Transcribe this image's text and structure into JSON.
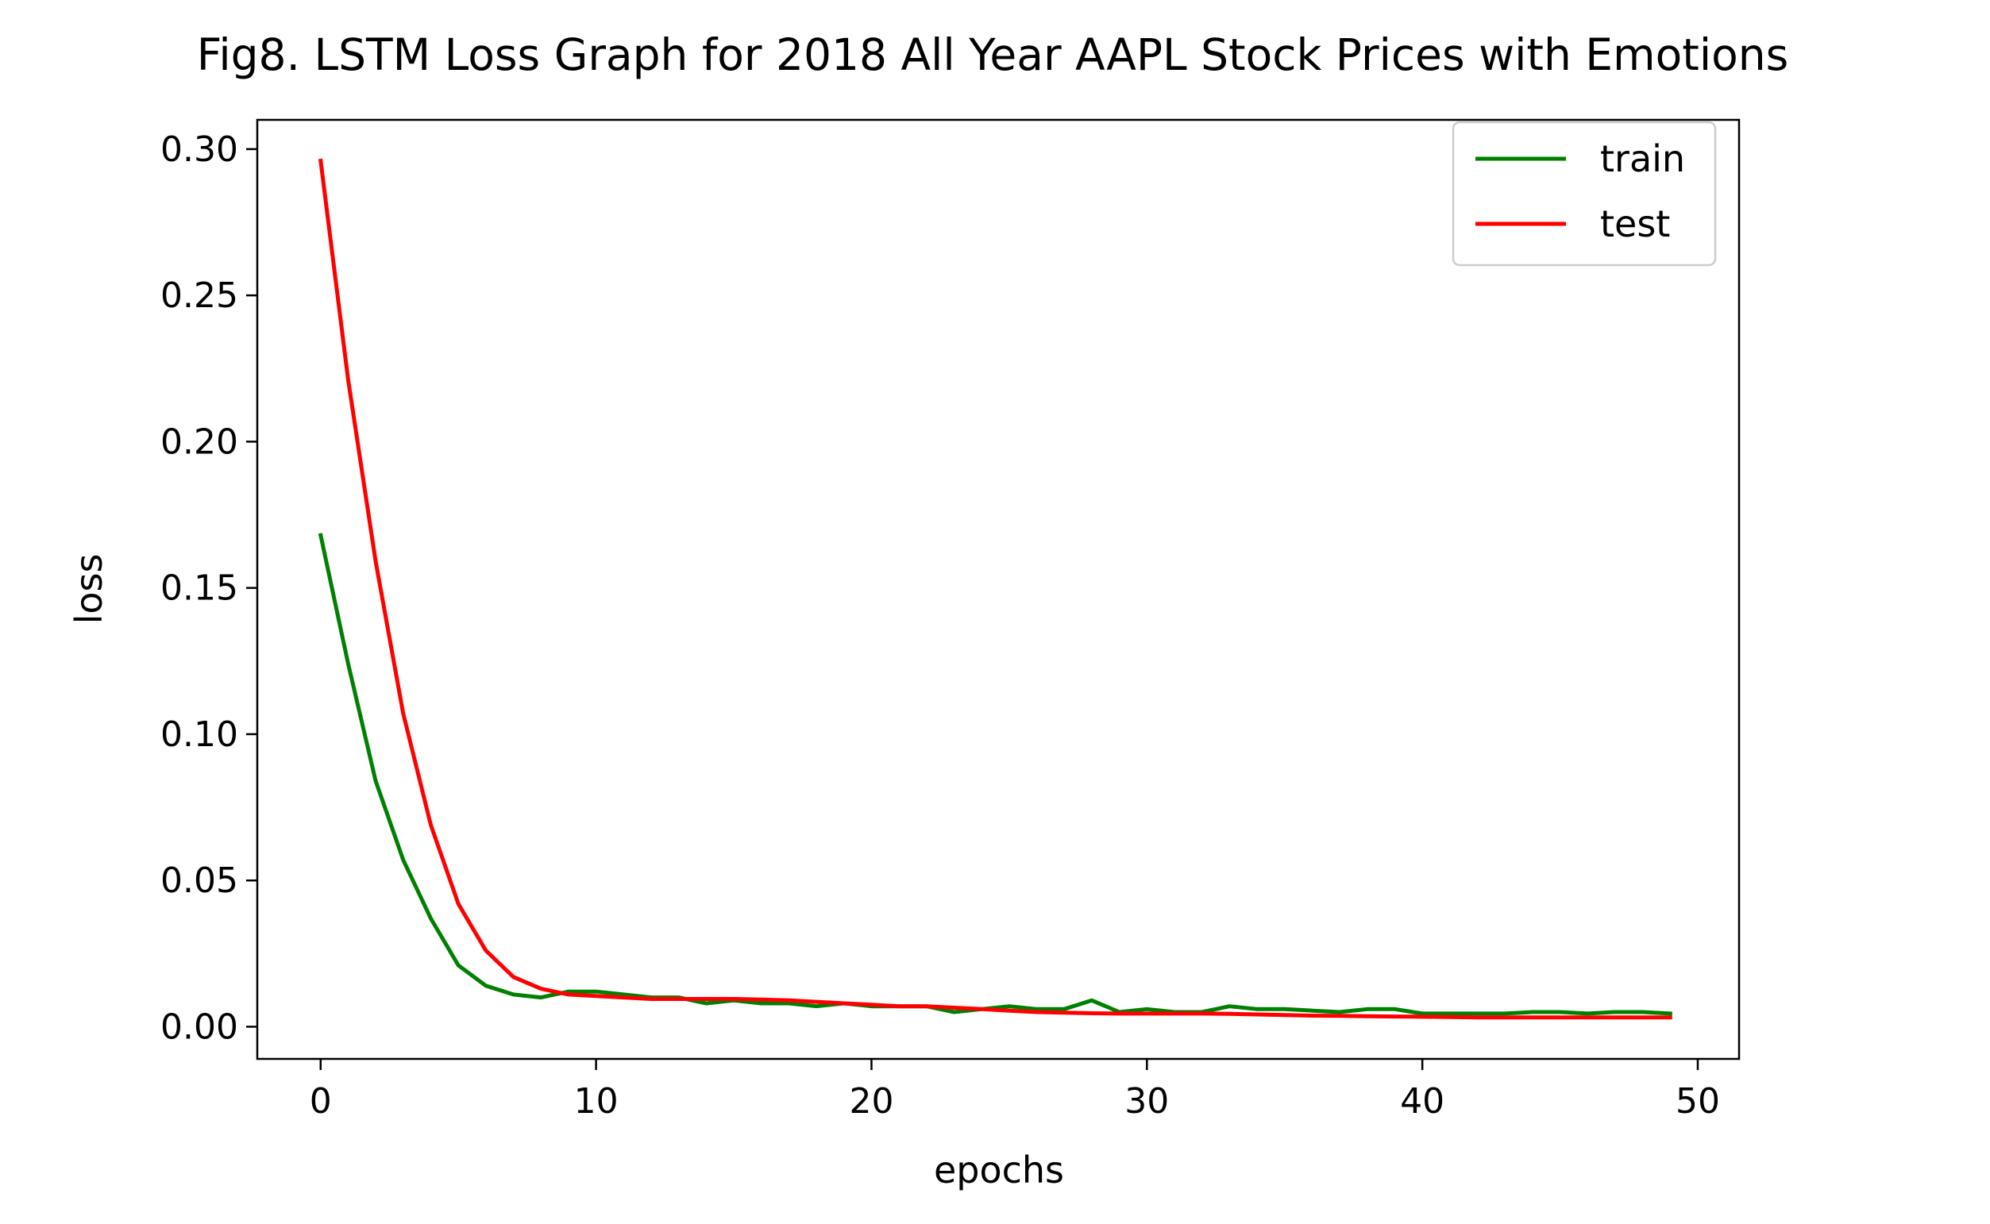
{
  "chart_data": {
    "type": "line",
    "title": "Fig8. LSTM Loss Graph for 2018 All Year AAPL Stock Prices with Emotions",
    "xlabel": "epochs",
    "ylabel": "loss",
    "xlim": [
      -2.3,
      51.5
    ],
    "ylim": [
      -0.011,
      0.31
    ],
    "xticks": [
      0,
      10,
      20,
      30,
      40,
      50
    ],
    "xtick_labels": [
      "0",
      "10",
      "20",
      "30",
      "40",
      "50"
    ],
    "yticks": [
      0.0,
      0.05,
      0.1,
      0.15,
      0.2,
      0.25,
      0.3
    ],
    "ytick_labels": [
      "0.00",
      "0.05",
      "0.10",
      "0.15",
      "0.20",
      "0.25",
      "0.30"
    ],
    "grid": false,
    "legend_position": "top-right",
    "x": [
      0,
      1,
      2,
      3,
      4,
      5,
      6,
      7,
      8,
      9,
      10,
      11,
      12,
      13,
      14,
      15,
      16,
      17,
      18,
      19,
      20,
      21,
      22,
      23,
      24,
      25,
      26,
      27,
      28,
      29,
      30,
      31,
      32,
      33,
      34,
      35,
      36,
      37,
      38,
      39,
      40,
      41,
      42,
      43,
      44,
      45,
      46,
      47,
      48,
      49
    ],
    "series": [
      {
        "name": "train",
        "color": "#008000",
        "values": [
          0.168,
          0.124,
          0.084,
          0.057,
          0.037,
          0.021,
          0.014,
          0.011,
          0.01,
          0.012,
          0.012,
          0.011,
          0.01,
          0.01,
          0.008,
          0.009,
          0.008,
          0.008,
          0.007,
          0.008,
          0.007,
          0.007,
          0.007,
          0.005,
          0.006,
          0.007,
          0.006,
          0.006,
          0.009,
          0.005,
          0.006,
          0.005,
          0.005,
          0.007,
          0.006,
          0.006,
          0.0055,
          0.005,
          0.006,
          0.006,
          0.0045,
          0.0045,
          0.0045,
          0.0045,
          0.005,
          0.005,
          0.0045,
          0.005,
          0.005,
          0.0045
        ]
      },
      {
        "name": "test",
        "color": "#ff0000",
        "values": [
          0.296,
          0.221,
          0.159,
          0.107,
          0.069,
          0.042,
          0.026,
          0.017,
          0.013,
          0.011,
          0.0105,
          0.01,
          0.0095,
          0.0095,
          0.0095,
          0.0095,
          0.0093,
          0.009,
          0.0085,
          0.008,
          0.0075,
          0.007,
          0.007,
          0.0065,
          0.006,
          0.0055,
          0.005,
          0.0048,
          0.0046,
          0.0045,
          0.0045,
          0.0045,
          0.0045,
          0.0044,
          0.0042,
          0.004,
          0.0038,
          0.0037,
          0.0036,
          0.0035,
          0.0034,
          0.0033,
          0.0032,
          0.0032,
          0.0032,
          0.0032,
          0.0032,
          0.0032,
          0.0032,
          0.0032
        ]
      }
    ]
  }
}
